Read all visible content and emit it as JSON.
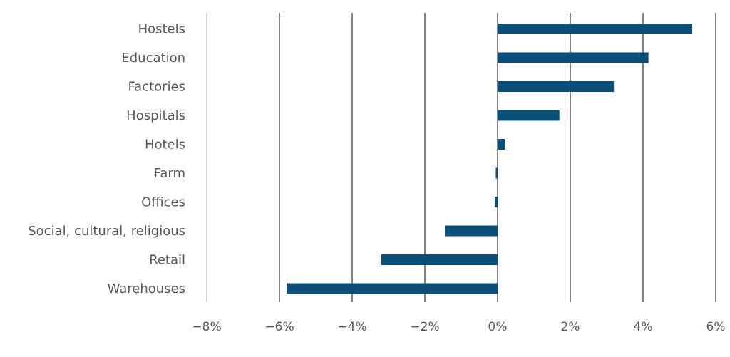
{
  "chart_data": {
    "type": "bar",
    "orientation": "horizontal",
    "title": "",
    "xlabel": "",
    "ylabel": "",
    "categories": [
      "Hostels",
      "Education",
      "Factories",
      "Hospitals",
      "Hotels",
      "Farm",
      "Offices",
      "Social, cultural, religious",
      "Retail",
      "Warehouses"
    ],
    "values": [
      5.35,
      4.15,
      3.2,
      1.7,
      0.2,
      -0.05,
      -0.08,
      -1.45,
      -3.2,
      -5.8
    ],
    "xlim": [
      -8,
      6
    ],
    "xticks": [
      -8,
      -6,
      -4,
      -2,
      0,
      2,
      4,
      6
    ],
    "xtick_labels": [
      "−8%",
      "−6%",
      "−4%",
      "−2%",
      "0%",
      "2%",
      "4%",
      "6%"
    ],
    "grid": true,
    "bar_color": "#0b5078",
    "grid_color": "#595959",
    "text_color": "#595959"
  }
}
